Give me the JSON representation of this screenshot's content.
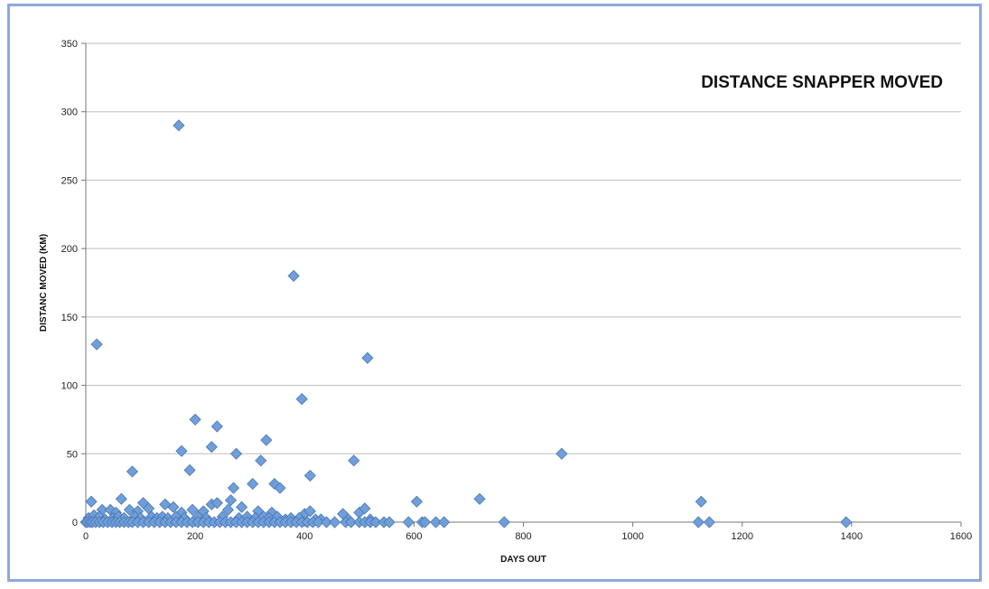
{
  "chart_data": {
    "type": "scatter",
    "title": "DISTANCE SNAPPER MOVED",
    "xlabel": "DAYS OUT",
    "ylabel": "DISTANC MOVED (KM)",
    "xlim": [
      0,
      1600
    ],
    "ylim": [
      0,
      350
    ],
    "xticks": [
      0,
      200,
      400,
      600,
      800,
      1000,
      1200,
      1400,
      1600
    ],
    "yticks": [
      0,
      50,
      100,
      150,
      200,
      250,
      300,
      350
    ],
    "grid": "horizontal",
    "legend": "none",
    "marker_color": "#6f9fd8",
    "marker_edge": "#4a74b5",
    "points": [
      [
        170,
        290
      ],
      [
        20,
        130
      ],
      [
        380,
        180
      ],
      [
        395,
        90
      ],
      [
        515,
        120
      ],
      [
        200,
        75
      ],
      [
        240,
        70
      ],
      [
        230,
        55
      ],
      [
        175,
        52
      ],
      [
        275,
        50
      ],
      [
        330,
        60
      ],
      [
        320,
        45
      ],
      [
        490,
        45
      ],
      [
        870,
        50
      ],
      [
        85,
        37
      ],
      [
        190,
        38
      ],
      [
        410,
        34
      ],
      [
        305,
        28
      ],
      [
        345,
        28
      ],
      [
        355,
        25
      ],
      [
        270,
        25
      ],
      [
        10,
        15
      ],
      [
        65,
        17
      ],
      [
        105,
        14
      ],
      [
        145,
        13
      ],
      [
        230,
        13
      ],
      [
        240,
        14
      ],
      [
        265,
        16
      ],
      [
        605,
        15
      ],
      [
        720,
        17
      ],
      [
        1125,
        15
      ],
      [
        30,
        9
      ],
      [
        45,
        9
      ],
      [
        55,
        7
      ],
      [
        80,
        9
      ],
      [
        95,
        8
      ],
      [
        115,
        10
      ],
      [
        160,
        11
      ],
      [
        175,
        7
      ],
      [
        195,
        9
      ],
      [
        215,
        8
      ],
      [
        260,
        9
      ],
      [
        285,
        11
      ],
      [
        315,
        8
      ],
      [
        340,
        7
      ],
      [
        400,
        6
      ],
      [
        410,
        8
      ],
      [
        470,
        6
      ],
      [
        500,
        7
      ],
      [
        510,
        10
      ],
      [
        5,
        3
      ],
      [
        15,
        5
      ],
      [
        25,
        4
      ],
      [
        35,
        2
      ],
      [
        50,
        3
      ],
      [
        60,
        4
      ],
      [
        70,
        3
      ],
      [
        90,
        4
      ],
      [
        100,
        3
      ],
      [
        120,
        4
      ],
      [
        130,
        3
      ],
      [
        140,
        4
      ],
      [
        150,
        3
      ],
      [
        165,
        4
      ],
      [
        180,
        3
      ],
      [
        205,
        4
      ],
      [
        220,
        3
      ],
      [
        250,
        4
      ],
      [
        280,
        3
      ],
      [
        295,
        4
      ],
      [
        310,
        3
      ],
      [
        325,
        4
      ],
      [
        335,
        3
      ],
      [
        350,
        4
      ],
      [
        365,
        2
      ],
      [
        375,
        3
      ],
      [
        390,
        3
      ],
      [
        420,
        2
      ],
      [
        430,
        2
      ],
      [
        480,
        2
      ],
      [
        520,
        2
      ],
      [
        0,
        0
      ],
      [
        3,
        0
      ],
      [
        8,
        0
      ],
      [
        12,
        0
      ],
      [
        18,
        0
      ],
      [
        25,
        0
      ],
      [
        32,
        0
      ],
      [
        40,
        0
      ],
      [
        48,
        0
      ],
      [
        55,
        0
      ],
      [
        62,
        0
      ],
      [
        70,
        0
      ],
      [
        78,
        0
      ],
      [
        85,
        0
      ],
      [
        95,
        0
      ],
      [
        105,
        0
      ],
      [
        115,
        0
      ],
      [
        125,
        0
      ],
      [
        135,
        0
      ],
      [
        145,
        0
      ],
      [
        155,
        0
      ],
      [
        165,
        0
      ],
      [
        175,
        0
      ],
      [
        185,
        0
      ],
      [
        195,
        0
      ],
      [
        205,
        0
      ],
      [
        215,
        0
      ],
      [
        225,
        0
      ],
      [
        235,
        0
      ],
      [
        245,
        0
      ],
      [
        255,
        0
      ],
      [
        265,
        0
      ],
      [
        275,
        0
      ],
      [
        285,
        0
      ],
      [
        295,
        0
      ],
      [
        305,
        0
      ],
      [
        315,
        0
      ],
      [
        325,
        0
      ],
      [
        335,
        0
      ],
      [
        345,
        0
      ],
      [
        355,
        0
      ],
      [
        365,
        0
      ],
      [
        375,
        0
      ],
      [
        385,
        0
      ],
      [
        395,
        0
      ],
      [
        405,
        0
      ],
      [
        415,
        0
      ],
      [
        425,
        0
      ],
      [
        440,
        0
      ],
      [
        455,
        0
      ],
      [
        475,
        0
      ],
      [
        485,
        0
      ],
      [
        500,
        0
      ],
      [
        510,
        0
      ],
      [
        520,
        0
      ],
      [
        530,
        0
      ],
      [
        545,
        0
      ],
      [
        555,
        0
      ],
      [
        590,
        0
      ],
      [
        615,
        0
      ],
      [
        620,
        0
      ],
      [
        640,
        0
      ],
      [
        655,
        0
      ],
      [
        765,
        0
      ],
      [
        1120,
        0
      ],
      [
        1140,
        0
      ],
      [
        1390,
        0
      ]
    ]
  }
}
